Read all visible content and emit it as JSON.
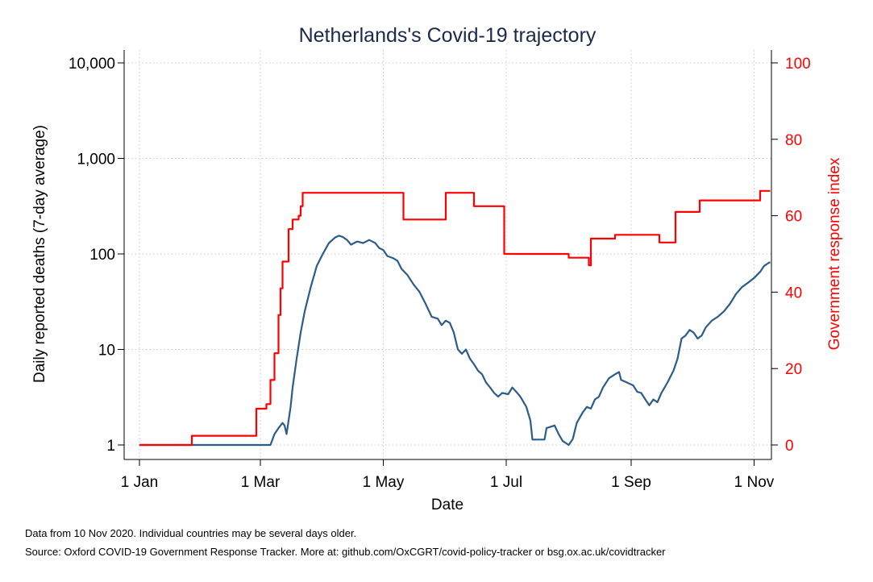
{
  "chart_data": {
    "type": "line",
    "title": "Netherlands's Covid-19 trajectory",
    "xlabel": "Date",
    "ylabel_left": "Daily reported deaths (7-day average)",
    "ylabel_right": "Government response index",
    "x_tick_labels": [
      "1 Jan",
      "1 Mar",
      "1 May",
      "1 Jul",
      "1 Sep",
      "1 Nov"
    ],
    "x_tick_dates": [
      "2020-01-01",
      "2020-03-01",
      "2020-05-01",
      "2020-07-01",
      "2020-09-01",
      "2020-11-01"
    ],
    "y_left_scale": "log",
    "y_left_ticks": [
      1,
      10,
      100,
      1000,
      10000
    ],
    "y_left_tick_labels": [
      "1",
      "10",
      "100",
      "1,000",
      "10,000"
    ],
    "y_right_ticks": [
      0,
      20,
      40,
      60,
      80,
      100
    ],
    "y_right_tick_labels": [
      "0",
      "20",
      "40",
      "60",
      "80",
      "100"
    ],
    "y_right_lim": [
      0,
      100
    ],
    "grid": true,
    "series": [
      {
        "axis": "left",
        "color": "#2b5c8a",
        "points": [
          [
            "2020-01-01",
            1
          ],
          [
            "2020-03-06",
            1
          ],
          [
            "2020-03-08",
            1.3
          ],
          [
            "2020-03-10",
            1.5
          ],
          [
            "2020-03-12",
            1.7
          ],
          [
            "2020-03-13",
            1.6
          ],
          [
            "2020-03-14",
            1.3
          ],
          [
            "2020-03-16",
            2.5
          ],
          [
            "2020-03-17",
            4
          ],
          [
            "2020-03-19",
            8
          ],
          [
            "2020-03-21",
            15
          ],
          [
            "2020-03-23",
            25
          ],
          [
            "2020-03-26",
            45
          ],
          [
            "2020-03-29",
            75
          ],
          [
            "2020-04-01",
            100
          ],
          [
            "2020-04-04",
            130
          ],
          [
            "2020-04-07",
            148
          ],
          [
            "2020-04-09",
            155
          ],
          [
            "2020-04-11",
            150
          ],
          [
            "2020-04-13",
            140
          ],
          [
            "2020-04-15",
            125
          ],
          [
            "2020-04-18",
            135
          ],
          [
            "2020-04-21",
            130
          ],
          [
            "2020-04-24",
            140
          ],
          [
            "2020-04-27",
            130
          ],
          [
            "2020-04-29",
            115
          ],
          [
            "2020-05-01",
            110
          ],
          [
            "2020-05-03",
            95
          ],
          [
            "2020-05-06",
            90
          ],
          [
            "2020-05-08",
            85
          ],
          [
            "2020-05-10",
            70
          ],
          [
            "2020-05-13",
            60
          ],
          [
            "2020-05-16",
            48
          ],
          [
            "2020-05-19",
            40
          ],
          [
            "2020-05-22",
            30
          ],
          [
            "2020-05-25",
            22
          ],
          [
            "2020-05-28",
            21
          ],
          [
            "2020-05-30",
            18
          ],
          [
            "2020-06-01",
            20
          ],
          [
            "2020-06-03",
            19
          ],
          [
            "2020-06-05",
            15
          ],
          [
            "2020-06-07",
            10
          ],
          [
            "2020-06-09",
            9
          ],
          [
            "2020-06-11",
            10
          ],
          [
            "2020-06-13",
            8
          ],
          [
            "2020-06-15",
            7
          ],
          [
            "2020-06-17",
            6
          ],
          [
            "2020-06-19",
            5.5
          ],
          [
            "2020-06-21",
            4.5
          ],
          [
            "2020-06-23",
            4
          ],
          [
            "2020-06-25",
            3.5
          ],
          [
            "2020-06-27",
            3.2
          ],
          [
            "2020-06-29",
            3.5
          ],
          [
            "2020-07-02",
            3.4
          ],
          [
            "2020-07-04",
            4
          ],
          [
            "2020-07-06",
            3.6
          ],
          [
            "2020-07-08",
            3.2
          ],
          [
            "2020-07-11",
            2.5
          ],
          [
            "2020-07-13",
            1.8
          ],
          [
            "2020-07-14",
            1.14
          ],
          [
            "2020-07-20",
            1.14
          ],
          [
            "2020-07-21",
            1.5
          ],
          [
            "2020-07-25",
            1.6
          ],
          [
            "2020-07-27",
            1.3
          ],
          [
            "2020-07-29",
            1.1
          ],
          [
            "2020-08-01",
            1.0
          ],
          [
            "2020-08-03",
            1.15
          ],
          [
            "2020-08-05",
            1.7
          ],
          [
            "2020-08-08",
            2.2
          ],
          [
            "2020-08-10",
            2.5
          ],
          [
            "2020-08-12",
            2.4
          ],
          [
            "2020-08-14",
            3
          ],
          [
            "2020-08-16",
            3.2
          ],
          [
            "2020-08-18",
            4
          ],
          [
            "2020-08-21",
            5
          ],
          [
            "2020-08-24",
            5.5
          ],
          [
            "2020-08-26",
            5.8
          ],
          [
            "2020-08-27",
            4.8
          ],
          [
            "2020-08-30",
            4.5
          ],
          [
            "2020-09-02",
            4.2
          ],
          [
            "2020-09-04",
            3.6
          ],
          [
            "2020-09-06",
            3.5
          ],
          [
            "2020-09-08",
            3.0
          ],
          [
            "2020-09-10",
            2.6
          ],
          [
            "2020-09-12",
            3.0
          ],
          [
            "2020-09-14",
            2.8
          ],
          [
            "2020-09-16",
            3.5
          ],
          [
            "2020-09-19",
            4.5
          ],
          [
            "2020-09-22",
            6
          ],
          [
            "2020-09-24",
            8
          ],
          [
            "2020-09-26",
            13
          ],
          [
            "2020-09-28",
            14
          ],
          [
            "2020-09-30",
            16
          ],
          [
            "2020-10-02",
            15
          ],
          [
            "2020-10-04",
            13
          ],
          [
            "2020-10-06",
            14
          ],
          [
            "2020-10-08",
            17
          ],
          [
            "2020-10-11",
            20
          ],
          [
            "2020-10-14",
            22
          ],
          [
            "2020-10-17",
            25
          ],
          [
            "2020-10-20",
            30
          ],
          [
            "2020-10-23",
            38
          ],
          [
            "2020-10-26",
            45
          ],
          [
            "2020-10-29",
            50
          ],
          [
            "2020-11-01",
            56
          ],
          [
            "2020-11-04",
            65
          ],
          [
            "2020-11-06",
            75
          ],
          [
            "2020-11-08",
            80
          ],
          [
            "2020-11-09",
            82
          ]
        ]
      },
      {
        "axis": "right",
        "color": "#ff0000",
        "step": true,
        "points": [
          [
            "2020-01-01",
            0
          ],
          [
            "2020-01-27",
            2.4
          ],
          [
            "2020-02-28",
            9.5
          ],
          [
            "2020-03-04",
            10.7
          ],
          [
            "2020-03-06",
            17
          ],
          [
            "2020-03-08",
            24
          ],
          [
            "2020-03-10",
            34
          ],
          [
            "2020-03-11",
            41
          ],
          [
            "2020-03-12",
            48
          ],
          [
            "2020-03-15",
            56.5
          ],
          [
            "2020-03-17",
            59
          ],
          [
            "2020-03-20",
            60
          ],
          [
            "2020-03-21",
            62.5
          ],
          [
            "2020-03-22",
            66
          ],
          [
            "2020-05-11",
            59
          ],
          [
            "2020-06-01",
            66
          ],
          [
            "2020-06-15",
            62.5
          ],
          [
            "2020-06-30",
            50
          ],
          [
            "2020-08-01",
            49
          ],
          [
            "2020-08-11",
            47
          ],
          [
            "2020-08-12",
            54
          ],
          [
            "2020-08-24",
            55
          ],
          [
            "2020-09-15",
            53
          ],
          [
            "2020-09-23",
            61
          ],
          [
            "2020-10-05",
            64
          ],
          [
            "2020-11-04",
            66.5
          ],
          [
            "2020-11-09",
            66.5
          ]
        ]
      }
    ]
  },
  "footer": {
    "note": "Data from 10 Nov 2020. Individual countries may be several days older.",
    "source": "Source: Oxford COVID-19 Government Response Tracker. More at: github.com/OxCGRT/covid-policy-tracker or bsg.ox.ac.uk/covidtracker"
  }
}
